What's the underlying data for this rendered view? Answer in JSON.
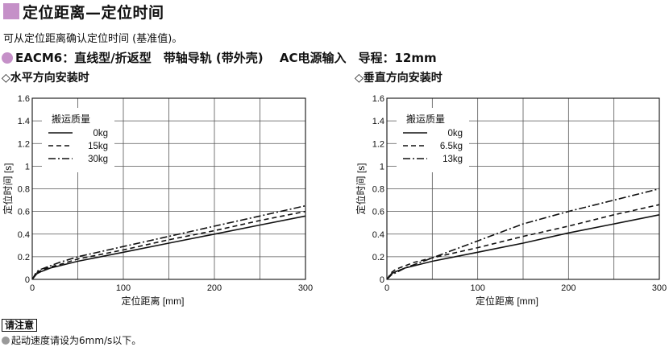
{
  "header": {
    "title": "定位距离—定位时间",
    "accent_color": "#c590c8"
  },
  "description": "可从定位距离确认定位时间 (基准值)。",
  "model": {
    "name": "EACM6",
    "spec": "：直线型/折返型　带轴导轨 (带外壳)　 AC电源输入　导程：12mm"
  },
  "notes": {
    "label": "请注意",
    "items": [
      "起动速度请设为6mm/s以下。"
    ]
  },
  "chart_data": [
    {
      "type": "line",
      "title": "◇水平方向安装时",
      "xlabel": "定位距离 [mm]",
      "ylabel": "定位时间 [s]",
      "xlim": [
        0,
        300
      ],
      "ylim": [
        0,
        1.6
      ],
      "xticks": [
        0,
        100,
        200,
        300
      ],
      "yticks": [
        0,
        0.2,
        0.4,
        0.6,
        0.8,
        1.0,
        1.2,
        1.4,
        1.6
      ],
      "grid": true,
      "legend_title": "搬运质量",
      "legend_position": "top-left",
      "series": [
        {
          "name": "0kg",
          "style": "solid",
          "x": [
            0,
            5,
            10,
            20,
            30,
            50,
            100,
            150,
            200,
            250,
            300
          ],
          "y": [
            0,
            0.05,
            0.07,
            0.1,
            0.12,
            0.16,
            0.24,
            0.32,
            0.4,
            0.48,
            0.56
          ]
        },
        {
          "name": "15kg",
          "style": "dashed",
          "x": [
            0,
            5,
            10,
            20,
            30,
            50,
            100,
            150,
            200,
            250,
            300
          ],
          "y": [
            0,
            0.06,
            0.08,
            0.11,
            0.13,
            0.18,
            0.26,
            0.35,
            0.43,
            0.52,
            0.6
          ]
        },
        {
          "name": "30kg",
          "style": "dashdot",
          "x": [
            0,
            5,
            10,
            20,
            30,
            50,
            100,
            150,
            200,
            250,
            300
          ],
          "y": [
            0,
            0.07,
            0.09,
            0.12,
            0.15,
            0.2,
            0.29,
            0.38,
            0.47,
            0.56,
            0.65
          ]
        }
      ]
    },
    {
      "type": "line",
      "title": "◇垂直方向安装时",
      "xlabel": "定位距离 [mm]",
      "ylabel": "定位时间 [s]",
      "xlim": [
        0,
        300
      ],
      "ylim": [
        0,
        1.6
      ],
      "xticks": [
        0,
        100,
        200,
        300
      ],
      "yticks": [
        0,
        0.2,
        0.4,
        0.6,
        0.8,
        1.0,
        1.2,
        1.4,
        1.6
      ],
      "grid": true,
      "legend_title": "搬运质量",
      "legend_position": "top-left",
      "series": [
        {
          "name": "0kg",
          "style": "solid",
          "x": [
            0,
            5,
            10,
            20,
            30,
            50,
            100,
            150,
            200,
            250,
            300
          ],
          "y": [
            0,
            0.05,
            0.07,
            0.1,
            0.12,
            0.16,
            0.24,
            0.32,
            0.41,
            0.49,
            0.57
          ]
        },
        {
          "name": "6.5kg",
          "style": "dashed",
          "x": [
            0,
            5,
            10,
            20,
            30,
            50,
            100,
            150,
            200,
            250,
            300
          ],
          "y": [
            0,
            0.06,
            0.09,
            0.12,
            0.15,
            0.19,
            0.28,
            0.38,
            0.47,
            0.57,
            0.66
          ]
        },
        {
          "name": "13kg",
          "style": "dashdot",
          "x": [
            0,
            5,
            10,
            20,
            30,
            50,
            100,
            150,
            200,
            250,
            300
          ],
          "y": [
            0,
            0.04,
            0.06,
            0.1,
            0.13,
            0.19,
            0.34,
            0.49,
            0.6,
            0.7,
            0.8
          ]
        }
      ]
    }
  ]
}
